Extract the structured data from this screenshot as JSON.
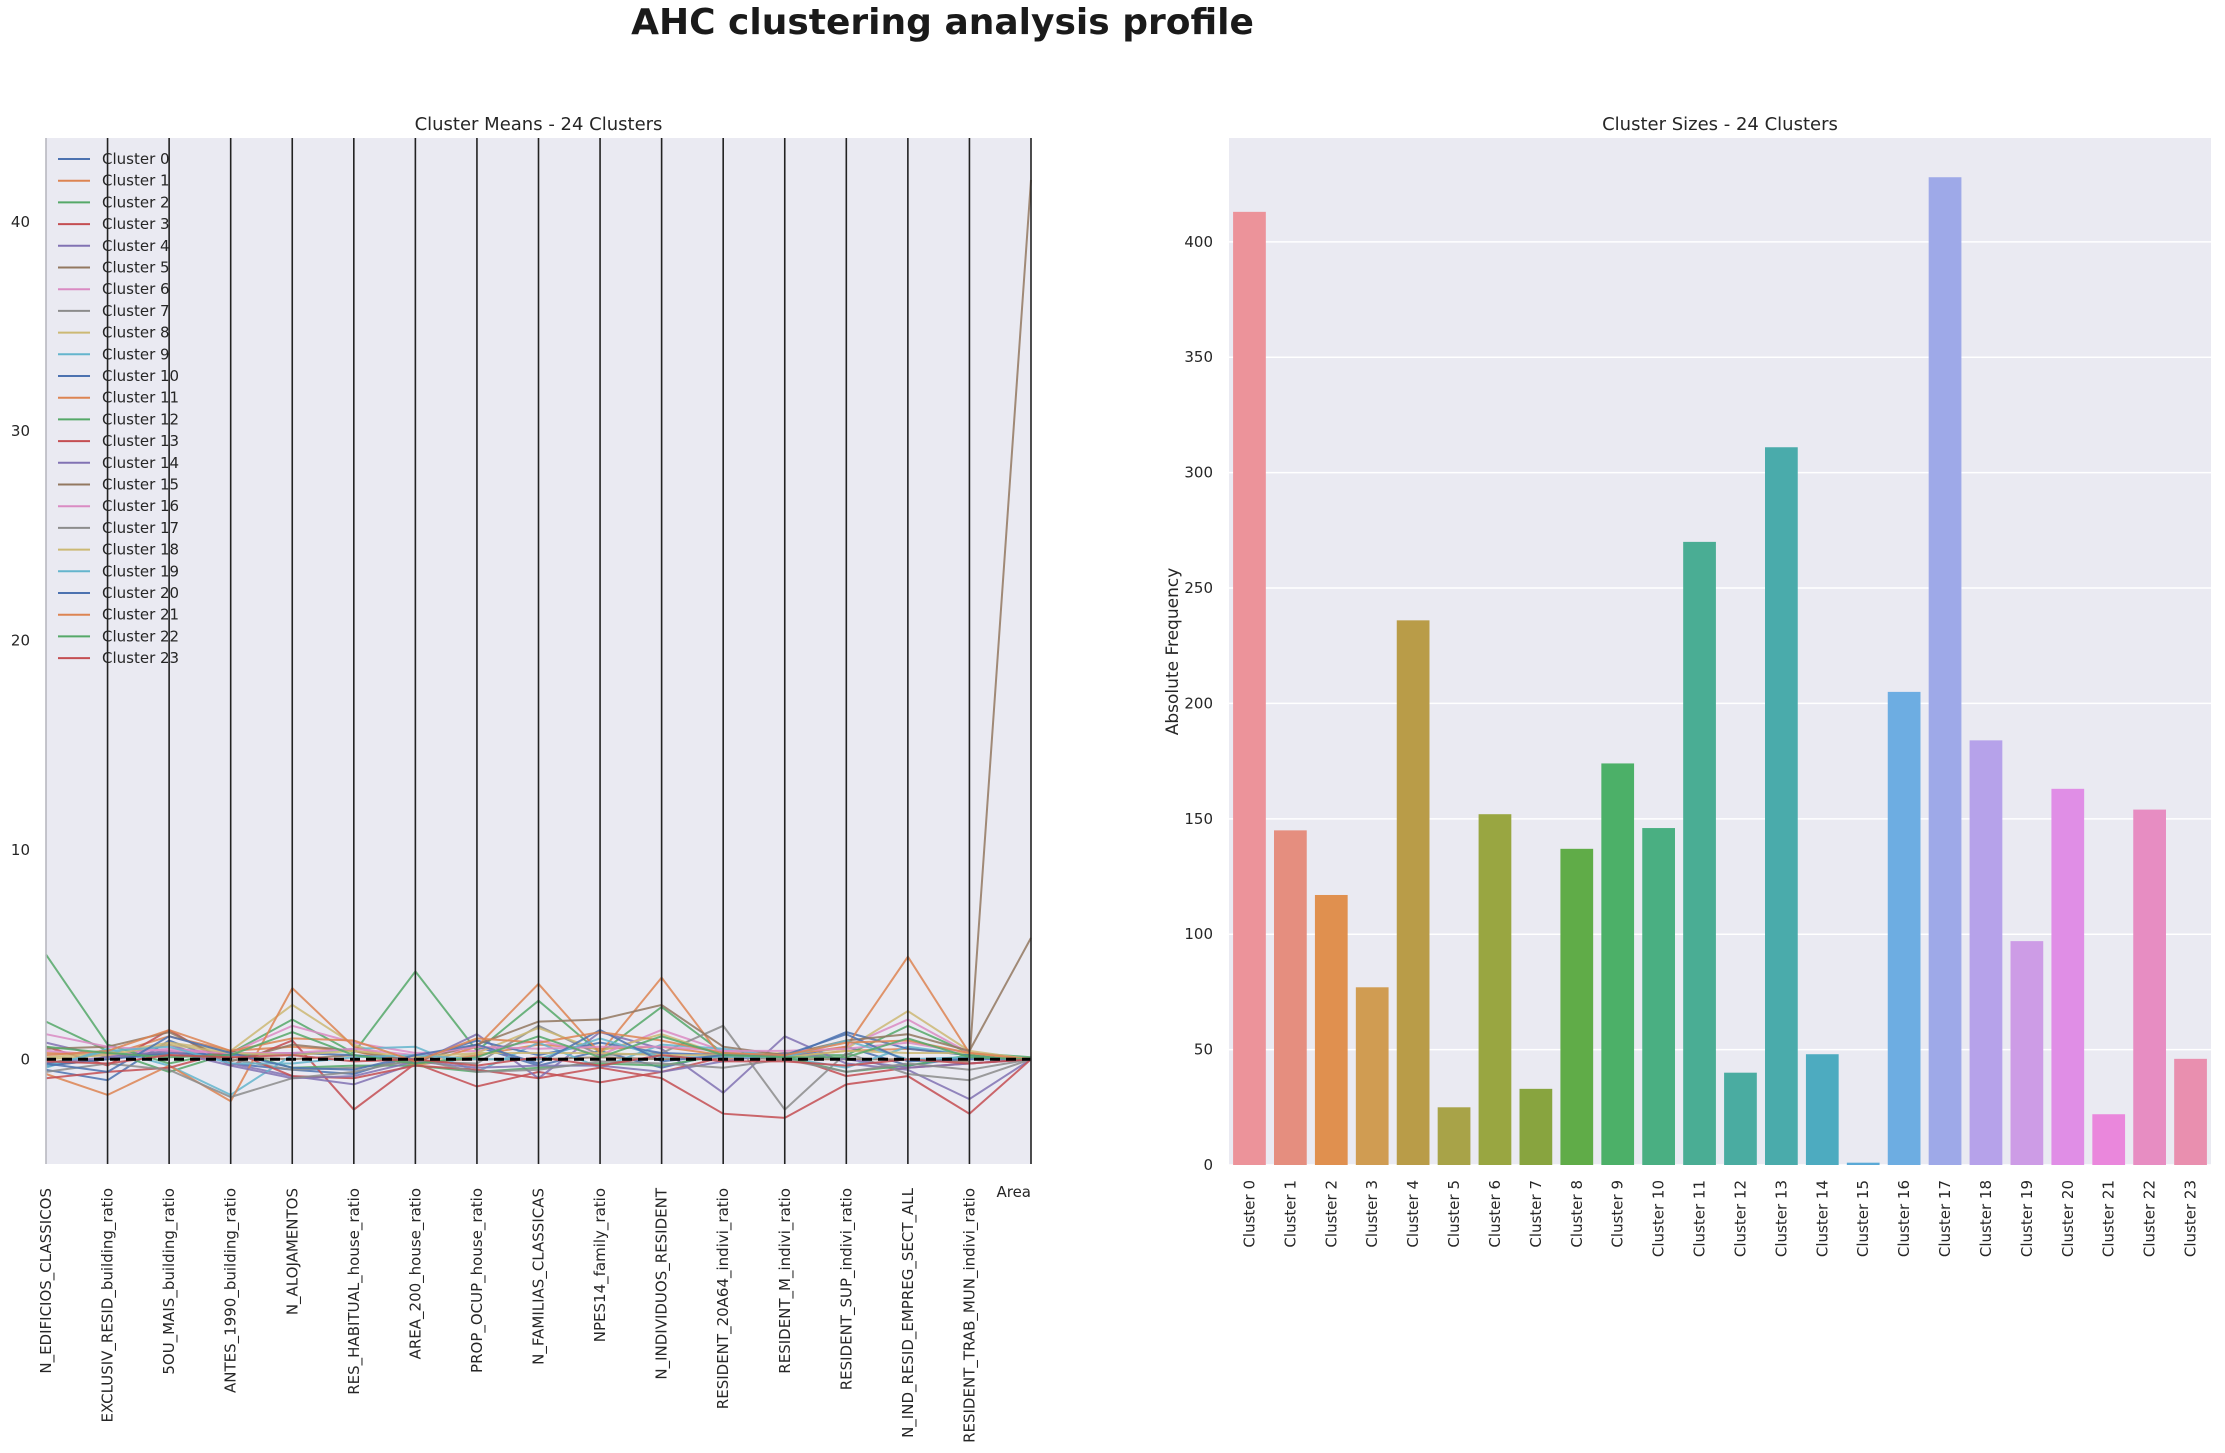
{
  "suptitle": "AHC clustering analysis profile",
  "chart_data": [
    {
      "type": "line",
      "title": "Cluster Means - 24 Clusters",
      "xlabel": "",
      "ylabel": "",
      "ylim": [
        -5,
        44
      ],
      "yticks": [
        0,
        10,
        20,
        30,
        40
      ],
      "grid": false,
      "legend_position": "upper-left",
      "x": [
        "N_EDIFICIOS_CLASSICOS",
        "EXCLUSIV_RESID_building_ratio",
        "5OU_MAIS_building_ratio",
        "ANTES_1990_building_ratio",
        "N_ALOJAMENTOS",
        "RES_HABITUAL_house_ratio",
        "AREA_200_house_ratio",
        "PROP_OCUP_house_ratio",
        "N_FAMILIAS_CLASSICAS",
        "NPES14_family_ratio",
        "N_INDIVIDUOS_RESIDENT",
        "RESIDENT_20A64_indivi_ratio",
        "RESIDENT_M_indivi_ratio",
        "RESIDENT_SUP_indivi_ratio",
        "N_IND_RESID_EMPREG_SECT_ALL",
        "RESIDENT_TRAB_MUN_indivi_ratio",
        "Area"
      ],
      "series": [
        {
          "name": "Cluster 0",
          "color": "#4c72b0",
          "values": [
            -0.5,
            -1.0,
            0.9,
            -0.2,
            -0.5,
            -0.7,
            0.2,
            0.6,
            -0.3,
            0.4,
            -0.4,
            0.3,
            0.1,
            0.6,
            -0.3,
            0.1,
            0.0
          ]
        },
        {
          "name": "Cluster 1",
          "color": "#dd8452",
          "values": [
            0.3,
            0.2,
            1.1,
            0.4,
            0.6,
            0.4,
            -0.3,
            0.2,
            0.7,
            0.5,
            0.6,
            0.2,
            0.1,
            0.4,
            0.5,
            0.2,
            0.0
          ]
        },
        {
          "name": "Cluster 2",
          "color": "#55a868",
          "values": [
            1.8,
            0.4,
            -0.6,
            0.3,
            1.9,
            0.3,
            4.2,
            0.4,
            2.8,
            0.3,
            2.5,
            0.3,
            0.2,
            0.2,
            1.6,
            0.3,
            0.1
          ]
        },
        {
          "name": "Cluster 3",
          "color": "#c44e52",
          "values": [
            0.6,
            -0.3,
            1.4,
            -0.3,
            0.9,
            -2.4,
            -0.2,
            -1.3,
            -0.6,
            -1.1,
            -0.6,
            0.1,
            0.2,
            -0.8,
            -0.4,
            -0.2,
            0.0
          ]
        },
        {
          "name": "Cluster 4",
          "color": "#8172b3",
          "values": [
            0.8,
            0.1,
            0.7,
            -0.2,
            -0.8,
            -1.2,
            -0.2,
            1.2,
            -0.9,
            1.3,
            0.5,
            -1.6,
            1.1,
            -0.2,
            -0.5,
            -1.9,
            0.0
          ]
        },
        {
          "name": "Cluster 5",
          "color": "#937860",
          "values": [
            -0.2,
            0.3,
            0.2,
            0.1,
            0.0,
            0.2,
            -0.1,
            0.0,
            0.0,
            0.1,
            0.0,
            0.1,
            0.0,
            0.0,
            0.0,
            -0.1,
            42.0
          ]
        },
        {
          "name": "Cluster 6",
          "color": "#da8bc3",
          "values": [
            0.4,
            0.2,
            0.5,
            0.3,
            1.6,
            0.8,
            0.3,
            0.4,
            0.9,
            0.2,
            1.4,
            0.4,
            0.2,
            0.6,
            1.9,
            0.3,
            0.0
          ]
        },
        {
          "name": "Cluster 7",
          "color": "#8c8c8c",
          "values": [
            -0.3,
            0.0,
            0.4,
            0.0,
            -0.5,
            -0.4,
            -0.1,
            -0.2,
            1.6,
            0.2,
            0.3,
            1.6,
            -2.4,
            0.3,
            -0.7,
            -1.0,
            0.0
          ]
        },
        {
          "name": "Cluster 8",
          "color": "#ccb974",
          "values": [
            0.1,
            0.3,
            0.8,
            0.4,
            2.6,
            0.7,
            -0.3,
            0.3,
            1.5,
            0.4,
            1.2,
            0.2,
            0.3,
            0.5,
            2.3,
            0.4,
            0.0
          ]
        },
        {
          "name": "Cluster 9",
          "color": "#64b5cd",
          "values": [
            -0.4,
            0.5,
            -0.3,
            -1.7,
            0.2,
            0.5,
            0.6,
            -0.6,
            0.8,
            -0.4,
            0.7,
            0.5,
            0.1,
            -0.4,
            0.6,
            0.2,
            0.0
          ]
        },
        {
          "name": "Cluster 10",
          "color": "#4c72b0",
          "values": [
            -0.3,
            0.0,
            0.3,
            0.2,
            0.3,
            0.2,
            0.0,
            0.9,
            0.2,
            0.8,
            0.3,
            0.2,
            0.1,
            1.3,
            0.5,
            0.2,
            0.0
          ]
        },
        {
          "name": "Cluster 11",
          "color": "#dd8452",
          "values": [
            -0.7,
            -1.7,
            -0.3,
            -2.0,
            3.4,
            0.6,
            -0.3,
            0.6,
            3.6,
            0.3,
            3.9,
            0.0,
            0.2,
            0.6,
            4.9,
            0.3,
            0.0
          ]
        },
        {
          "name": "Cluster 12",
          "color": "#55a868",
          "values": [
            5.0,
            0.7,
            -0.2,
            0.4,
            -0.4,
            -0.3,
            -0.3,
            -0.6,
            -0.4,
            -0.2,
            -0.3,
            0.2,
            0.1,
            -0.6,
            -0.3,
            0.2,
            0.0
          ]
        },
        {
          "name": "Cluster 13",
          "color": "#c44e52",
          "values": [
            -0.9,
            -0.6,
            -0.4,
            0.4,
            -0.8,
            -0.9,
            -0.3,
            -0.5,
            -0.9,
            -0.4,
            -0.9,
            -2.6,
            -2.8,
            -1.2,
            -0.8,
            -2.6,
            0.0
          ]
        },
        {
          "name": "Cluster 14",
          "color": "#8172b3",
          "values": [
            -0.2,
            0.1,
            0.4,
            -0.3,
            -0.9,
            -0.8,
            -0.1,
            -0.4,
            -0.3,
            -0.3,
            -0.6,
            -0.1,
            0.3,
            0.0,
            -0.4,
            -0.2,
            0.0
          ]
        },
        {
          "name": "Cluster 15",
          "color": "#937860",
          "values": [
            0.5,
            0.6,
            1.3,
            -0.1,
            0.7,
            0.4,
            -0.1,
            0.7,
            1.8,
            1.9,
            2.6,
            0.6,
            0.2,
            0.9,
            1.2,
            0.4,
            5.8
          ]
        },
        {
          "name": "Cluster 16",
          "color": "#da8bc3",
          "values": [
            1.2,
            0.6,
            0.4,
            0.3,
            0.3,
            0.5,
            0.2,
            0.6,
            0.5,
            0.6,
            0.6,
            0.4,
            0.4,
            0.5,
            0.8,
            0.3,
            0.0
          ]
        },
        {
          "name": "Cluster 17",
          "color": "#8c8c8c",
          "values": [
            -0.6,
            -0.2,
            -0.5,
            -1.8,
            -0.9,
            -0.6,
            0.0,
            -0.6,
            -0.5,
            -0.1,
            -0.2,
            -0.4,
            0.0,
            -0.6,
            -0.2,
            -0.5,
            0.0
          ]
        },
        {
          "name": "Cluster 18",
          "color": "#ccb974",
          "values": [
            0.0,
            0.2,
            0.7,
            0.3,
            0.2,
            0.4,
            0.1,
            0.3,
            0.3,
            0.3,
            0.2,
            0.2,
            0.1,
            0.4,
            0.3,
            0.3,
            0.0
          ]
        },
        {
          "name": "Cluster 19",
          "color": "#64b5cd",
          "values": [
            -0.3,
            0.4,
            0.6,
            -0.2,
            -0.2,
            0.1,
            0.2,
            0.0,
            0.0,
            1.0,
            0.1,
            0.1,
            0.1,
            0.9,
            0.0,
            0.1,
            0.0
          ]
        },
        {
          "name": "Cluster 20",
          "color": "#4c72b0",
          "values": [
            -0.2,
            -0.6,
            1.1,
            0.3,
            -0.4,
            -0.5,
            0.2,
            0.7,
            -0.2,
            1.4,
            -0.1,
            0.2,
            0.2,
            1.2,
            -0.1,
            0.0,
            0.0
          ]
        },
        {
          "name": "Cluster 21",
          "color": "#dd8452",
          "values": [
            0.2,
            0.4,
            1.4,
            0.4,
            1.0,
            0.9,
            -0.1,
            1.0,
            0.8,
            1.3,
            0.9,
            0.3,
            0.2,
            0.8,
            0.9,
            0.3,
            0.0
          ]
        },
        {
          "name": "Cluster 22",
          "color": "#55a868",
          "values": [
            0.6,
            0.3,
            0.1,
            0.2,
            1.3,
            0.2,
            -0.2,
            0.1,
            1.1,
            0.1,
            1.1,
            0.2,
            0.1,
            0.1,
            1.0,
            0.1,
            0.0
          ]
        },
        {
          "name": "Cluster 23",
          "color": "#c44e52",
          "values": [
            -0.1,
            -0.2,
            0.2,
            0.1,
            0.2,
            -0.1,
            0.0,
            -0.3,
            0.1,
            -0.3,
            0.2,
            -0.1,
            -0.1,
            -0.3,
            0.0,
            -0.2,
            0.0
          ]
        }
      ],
      "overall_mean": {
        "color": "#000000",
        "style": "dashed",
        "values": [
          0.0,
          0.0,
          0.0,
          0.0,
          0.0,
          0.0,
          0.0,
          0.0,
          0.0,
          0.0,
          0.0,
          0.0,
          0.0,
          0.0,
          0.0,
          0.0,
          0.0
        ]
      }
    },
    {
      "type": "bar",
      "title": "Cluster Sizes - 24 Clusters",
      "xlabel": "",
      "ylabel": "Absolute Frequency",
      "ylim": [
        0,
        445
      ],
      "yticks": [
        0,
        50,
        100,
        150,
        200,
        250,
        300,
        350,
        400
      ],
      "grid": true,
      "categories": [
        "Cluster 0",
        "Cluster 1",
        "Cluster 2",
        "Cluster 3",
        "Cluster 4",
        "Cluster 5",
        "Cluster 6",
        "Cluster 7",
        "Cluster 8",
        "Cluster 9",
        "Cluster 10",
        "Cluster 11",
        "Cluster 12",
        "Cluster 13",
        "Cluster 14",
        "Cluster 15",
        "Cluster 16",
        "Cluster 17",
        "Cluster 18",
        "Cluster 19",
        "Cluster 20",
        "Cluster 21",
        "Cluster 22",
        "Cluster 23"
      ],
      "values": [
        413,
        145,
        117,
        77,
        236,
        25,
        152,
        33,
        137,
        174,
        146,
        270,
        40,
        311,
        48,
        1,
        205,
        428,
        184,
        97,
        163,
        22,
        154,
        46
      ],
      "colors": [
        "#ec939a",
        "#e58e7f",
        "#e0904f",
        "#d09c52",
        "#b99c48",
        "#a8a348",
        "#99a641",
        "#88a43f",
        "#60ac48",
        "#4cb068",
        "#4aaf82",
        "#4aad94",
        "#4aaca1",
        "#4aabab",
        "#4dabc0",
        "#5aa9d6",
        "#6dade2",
        "#9ea9e8",
        "#b6a2ea",
        "#cd9ce6",
        "#e08ee6",
        "#ea87dc",
        "#e78dc2",
        "#e98faf"
      ]
    }
  ]
}
